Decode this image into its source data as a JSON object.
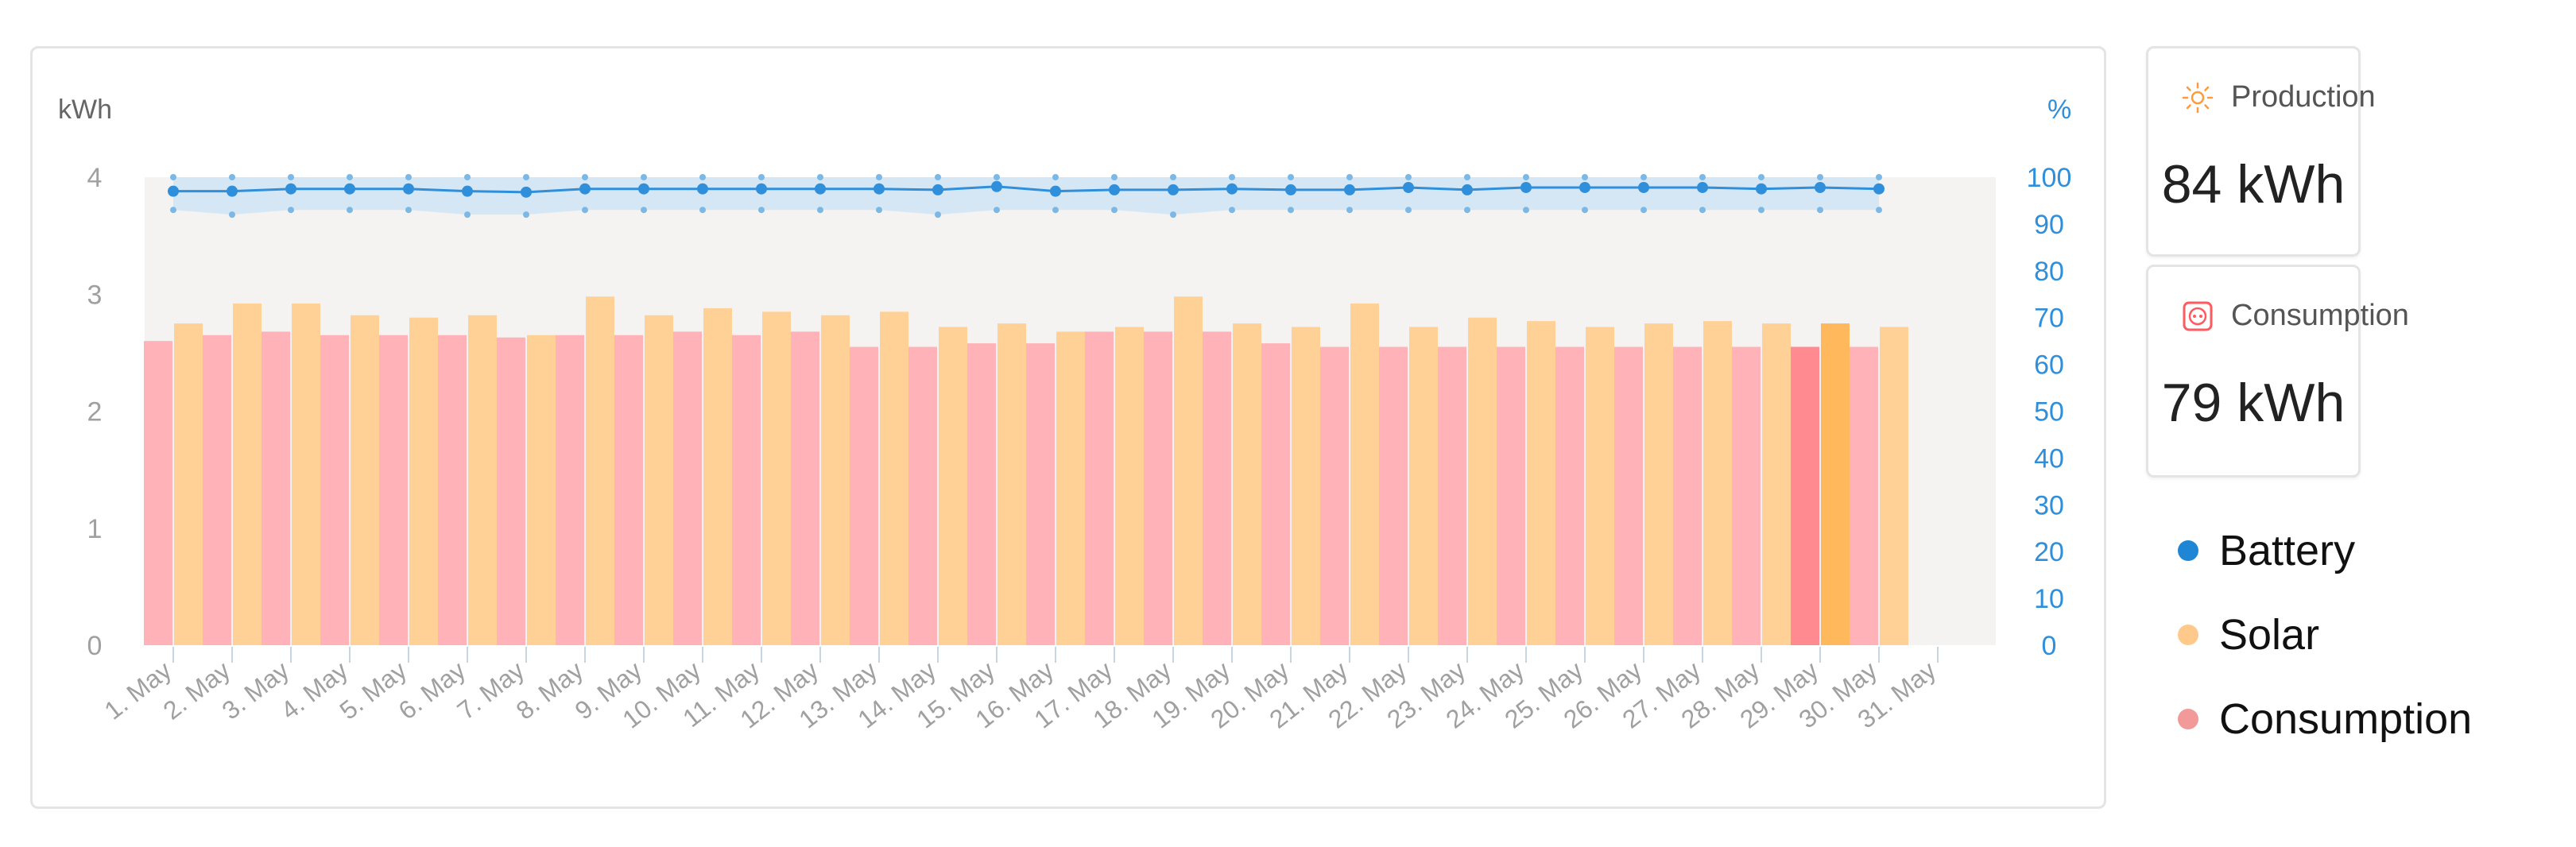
{
  "colors": {
    "battery": "#2f8fdb",
    "battery_band": "#cfe4f4",
    "solar": "#ffd197",
    "solar_highlight": "#ffb95c",
    "consumption": "#ffb3b8",
    "consumption_highlight": "#ff8a8f",
    "plot_bg": "#f4f3f1",
    "axis_text": "#a0a0a0",
    "right_axis_text": "#2f8fdb"
  },
  "stats": {
    "production": {
      "label": "Production",
      "value": "84 kWh",
      "icon": "sun-icon"
    },
    "consumption": {
      "label": "Consumption",
      "value": "79 kWh",
      "icon": "plug-icon"
    }
  },
  "legend": {
    "battery": "Battery",
    "solar": "Solar",
    "consumption": "Consumption"
  },
  "chart_data": {
    "type": "bar",
    "left_axis_unit": "kWh",
    "right_axis_unit": "%",
    "left_ylim": [
      0,
      4
    ],
    "left_ticks": [
      "0",
      "1",
      "2",
      "3",
      "4"
    ],
    "right_ylim": [
      0,
      100
    ],
    "right_ticks": [
      "0",
      "10",
      "20",
      "30",
      "40",
      "50",
      "60",
      "70",
      "80",
      "90",
      "100"
    ],
    "grid": false,
    "categories": [
      "1. May",
      "2. May",
      "3. May",
      "4. May",
      "5. May",
      "6. May",
      "7. May",
      "8. May",
      "9. May",
      "10. May",
      "11. May",
      "12. May",
      "13. May",
      "14. May",
      "15. May",
      "16. May",
      "17. May",
      "18. May",
      "19. May",
      "20. May",
      "21. May",
      "22. May",
      "23. May",
      "24. May",
      "25. May",
      "26. May",
      "27. May",
      "28. May",
      "29. May",
      "30. May",
      "31. May"
    ],
    "highlighted_category": "29. May",
    "series": [
      {
        "name": "Consumption",
        "type": "bar",
        "axis": "left",
        "values": [
          2.6,
          2.65,
          2.68,
          2.65,
          2.65,
          2.65,
          2.63,
          2.65,
          2.65,
          2.68,
          2.65,
          2.68,
          2.55,
          2.55,
          2.58,
          2.58,
          2.68,
          2.68,
          2.68,
          2.58,
          2.55,
          2.55,
          2.55,
          2.55,
          2.55,
          2.55,
          2.55,
          2.55,
          2.55,
          2.55,
          null
        ]
      },
      {
        "name": "Solar",
        "type": "bar",
        "axis": "left",
        "values": [
          2.75,
          2.92,
          2.92,
          2.82,
          2.8,
          2.82,
          2.65,
          2.98,
          2.82,
          2.88,
          2.85,
          2.82,
          2.85,
          2.72,
          2.75,
          2.68,
          2.72,
          2.98,
          2.75,
          2.72,
          2.92,
          2.72,
          2.8,
          2.77,
          2.72,
          2.75,
          2.77,
          2.75,
          2.75,
          2.72,
          null
        ]
      },
      {
        "name": "Battery",
        "type": "line",
        "axis": "right",
        "values": [
          97,
          97,
          97.5,
          97.5,
          97.5,
          97,
          96.8,
          97.5,
          97.5,
          97.5,
          97.5,
          97.5,
          97.5,
          97.3,
          98,
          97,
          97.3,
          97.3,
          97.5,
          97.3,
          97.3,
          97.8,
          97.3,
          97.8,
          97.8,
          97.8,
          97.8,
          97.5,
          97.8,
          97.5,
          null
        ],
        "max_values": [
          100,
          100,
          100,
          100,
          100,
          100,
          100,
          100,
          100,
          100,
          100,
          100,
          100,
          100,
          100,
          100,
          100,
          100,
          100,
          100,
          100,
          100,
          100,
          100,
          100,
          100,
          100,
          100,
          100,
          100,
          null
        ],
        "min_values": [
          93,
          92,
          93,
          93,
          93,
          92,
          92,
          93,
          93,
          93,
          93,
          93,
          93,
          92,
          93,
          93,
          93,
          92,
          93,
          93,
          93,
          93,
          93,
          93,
          93,
          93,
          93,
          93,
          93,
          93,
          null
        ]
      }
    ]
  }
}
